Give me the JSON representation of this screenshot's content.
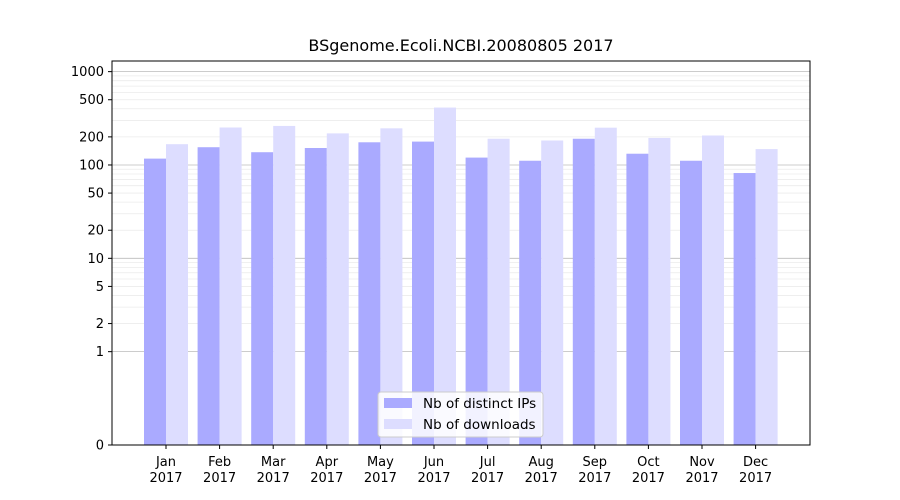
{
  "chart_data": {
    "type": "bar",
    "title": "BSgenome.Ecoli.NCBI.20080805 2017",
    "xlabel": "",
    "ylabel": "",
    "y_scale": "symlog",
    "ylim": [
      0,
      1300
    ],
    "grid": true,
    "legend_position": "bottom-center",
    "categories": [
      "Jan\n2017",
      "Feb\n2017",
      "Mar\n2017",
      "Apr\n2017",
      "May\n2017",
      "Jun\n2017",
      "Jul\n2017",
      "Aug\n2017",
      "Sep\n2017",
      "Oct\n2017",
      "Nov\n2017",
      "Dec\n2017"
    ],
    "y_ticks": [
      {
        "value": 0,
        "label": "0"
      },
      {
        "value": 1,
        "label": "1"
      },
      {
        "value": 2,
        "label": "2"
      },
      {
        "value": 5,
        "label": "5"
      },
      {
        "value": 10,
        "label": "10"
      },
      {
        "value": 20,
        "label": "20"
      },
      {
        "value": 50,
        "label": "50"
      },
      {
        "value": 100,
        "label": "100"
      },
      {
        "value": 200,
        "label": "200"
      },
      {
        "value": 500,
        "label": "500"
      },
      {
        "value": 1000,
        "label": "1000"
      }
    ],
    "series": [
      {
        "name": "Nb of distinct IPs",
        "color": "#aaaaff",
        "values": [
          117,
          155,
          137,
          152,
          175,
          178,
          120,
          111,
          191,
          132,
          111,
          82
        ]
      },
      {
        "name": "Nb of downloads",
        "color": "#ddddff",
        "values": [
          167,
          252,
          262,
          218,
          247,
          412,
          191,
          183,
          251,
          195,
          207,
          148
        ]
      }
    ]
  }
}
